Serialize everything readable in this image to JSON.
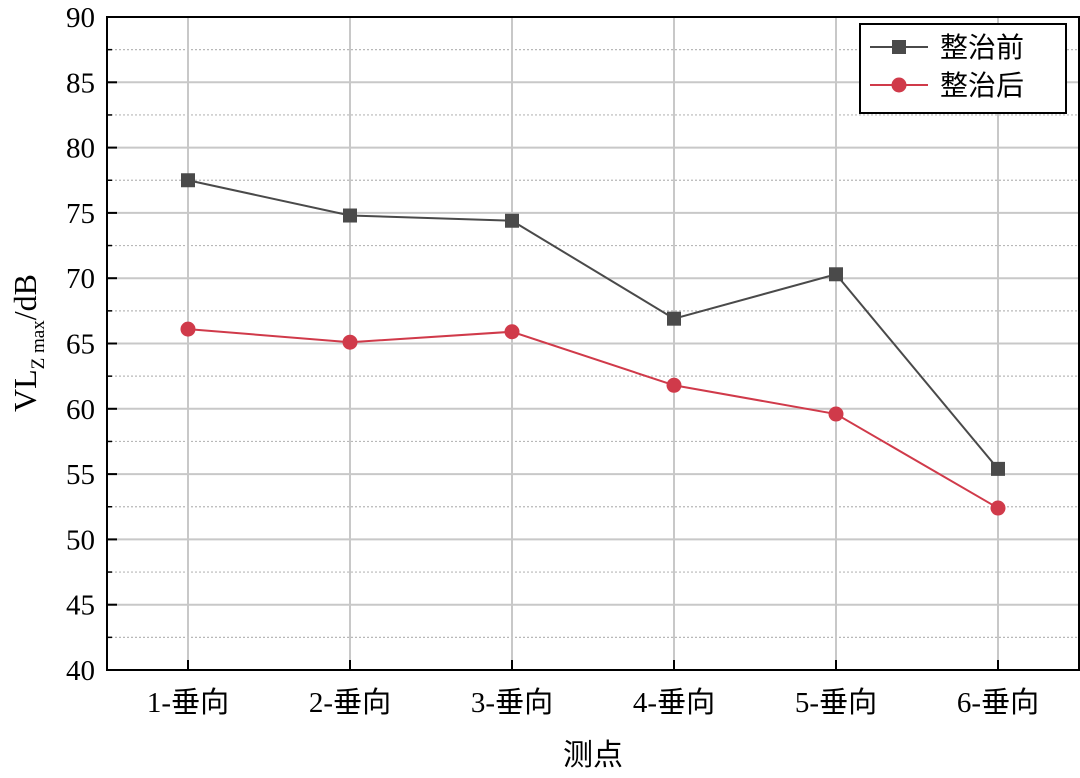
{
  "chart_data": {
    "type": "line",
    "categories": [
      "1-垂向",
      "2-垂向",
      "3-垂向",
      "4-垂向",
      "5-垂向",
      "6-垂向"
    ],
    "series": [
      {
        "name": "整治前",
        "values": [
          77.5,
          74.8,
          74.4,
          66.9,
          70.3,
          55.4
        ],
        "color": "#4a4a4a",
        "marker": "square"
      },
      {
        "name": "整治后",
        "values": [
          66.1,
          65.1,
          65.9,
          61.8,
          59.6,
          52.4
        ],
        "color": "#d03a4a",
        "marker": "circle"
      }
    ],
    "xlabel": "测点",
    "ylabel": {
      "main": "VL",
      "sub": "Z max",
      "suffix": "/dB"
    },
    "ylim": [
      40,
      90
    ],
    "yticks": [
      40,
      45,
      50,
      55,
      60,
      65,
      70,
      75,
      80,
      85,
      90
    ],
    "grid": true,
    "legend_position": "top-right"
  }
}
